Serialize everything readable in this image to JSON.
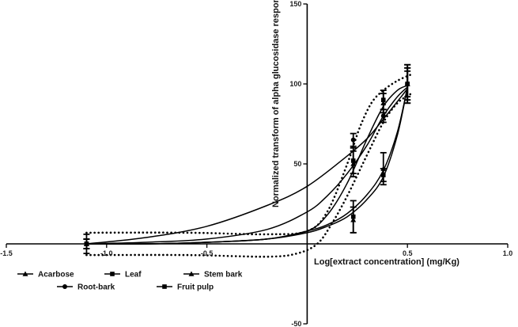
{
  "chart_data": {
    "type": "line",
    "xlabel": "Log[extract concentration] (mg/Kg)",
    "ylabel": "Normalized transform of alpha glucosidase  response",
    "xlim": [
      -1.5,
      1.0
    ],
    "ylim": [
      -50,
      150
    ],
    "xticks": [
      "-1.5",
      "-1.0",
      "-0.5",
      "0.5",
      "1.0"
    ],
    "yticks": [
      "-50",
      "50",
      "100",
      "150"
    ],
    "legend_position": "bottom-left",
    "series": [
      {
        "name": "Acarbose",
        "marker": "triangle",
        "style": "solid",
        "x": [
          -1.1,
          0.23,
          0.38,
          0.5
        ],
        "y": [
          0,
          50,
          88,
          100
        ],
        "err": [
          3,
          8,
          6,
          10
        ]
      },
      {
        "name": "Leaf",
        "marker": "square",
        "style": "solid",
        "x": [
          -1.1,
          0.23,
          0.38,
          0.5
        ],
        "y": [
          0,
          17,
          43,
          100
        ],
        "err": [
          3,
          10,
          4,
          12
        ]
      },
      {
        "name": "Stem bark",
        "marker": "triangle",
        "style": "solid",
        "x": [
          -1.1,
          0.23,
          0.38,
          0.5
        ],
        "y": [
          0,
          15,
          47,
          100
        ],
        "err": [
          3,
          8,
          10,
          10
        ]
      },
      {
        "name": "Root-bark",
        "marker": "circle",
        "style": "solid",
        "x": [
          -1.1,
          0.23,
          0.38,
          0.5
        ],
        "y": [
          0,
          65,
          80,
          100
        ],
        "err": [
          3,
          4,
          4,
          8
        ]
      },
      {
        "name": "Fruit pulp",
        "marker": "square",
        "style": "dotted",
        "x": [
          -1.1,
          0.23,
          0.38,
          0.5
        ],
        "y": [
          0,
          52,
          90,
          100
        ],
        "err": [
          6,
          8,
          6,
          12
        ]
      }
    ],
    "curves": [
      {
        "series": "Acarbose",
        "style": "solid",
        "x": [
          -1.1,
          -0.8,
          -0.5,
          -0.2,
          0.0,
          0.1,
          0.2,
          0.3,
          0.38,
          0.45,
          0.5
        ],
        "y": [
          0,
          1,
          3,
          9,
          20,
          30,
          44,
          62,
          80,
          92,
          98
        ]
      },
      {
        "series": "Leaf",
        "style": "solid",
        "x": [
          -1.1,
          -0.8,
          -0.5,
          -0.2,
          0.0,
          0.1,
          0.2,
          0.3,
          0.38,
          0.45,
          0.5
        ],
        "y": [
          0,
          0,
          1,
          3,
          7,
          11,
          17,
          28,
          42,
          68,
          98
        ]
      },
      {
        "series": "Stem bark",
        "style": "solid",
        "x": [
          -1.1,
          -0.8,
          -0.5,
          -0.2,
          0.0,
          0.1,
          0.2,
          0.3,
          0.38,
          0.45,
          0.5
        ],
        "y": [
          0,
          0,
          1,
          3,
          8,
          12,
          19,
          31,
          46,
          70,
          98
        ]
      },
      {
        "series": "Root-bark",
        "style": "solid",
        "x": [
          -1.1,
          -0.8,
          -0.5,
          -0.2,
          0.0,
          0.2,
          0.3,
          0.38,
          0.45,
          0.5
        ],
        "y": [
          0,
          4,
          11,
          24,
          36,
          55,
          66,
          78,
          89,
          97
        ]
      },
      {
        "series": "Fruit pulp",
        "style": "solid",
        "x": [
          -1.1,
          -0.8,
          -0.5,
          -0.2,
          0.0,
          0.1,
          0.2,
          0.3,
          0.38,
          0.45,
          0.5
        ],
        "y": [
          0,
          0,
          1,
          3,
          8,
          18,
          38,
          66,
          86,
          96,
          99
        ]
      },
      {
        "series": "Fruit pulp",
        "style": "dotted",
        "x": [
          -1.1,
          -0.6,
          -0.2,
          0.0,
          0.1,
          0.2,
          0.26,
          0.32,
          0.38,
          0.45,
          0.52
        ],
        "y": [
          7,
          7,
          6,
          8,
          20,
          50,
          72,
          88,
          96,
          102,
          106
        ]
      },
      {
        "series": "Fruit pulp",
        "style": "dotted",
        "x": [
          -1.1,
          -0.6,
          -0.2,
          -0.05,
          0.05,
          0.12,
          0.2,
          0.3,
          0.38,
          0.45,
          0.52
        ],
        "y": [
          -7,
          -7,
          -8,
          -6,
          0,
          12,
          30,
          56,
          76,
          88,
          94
        ]
      }
    ]
  }
}
